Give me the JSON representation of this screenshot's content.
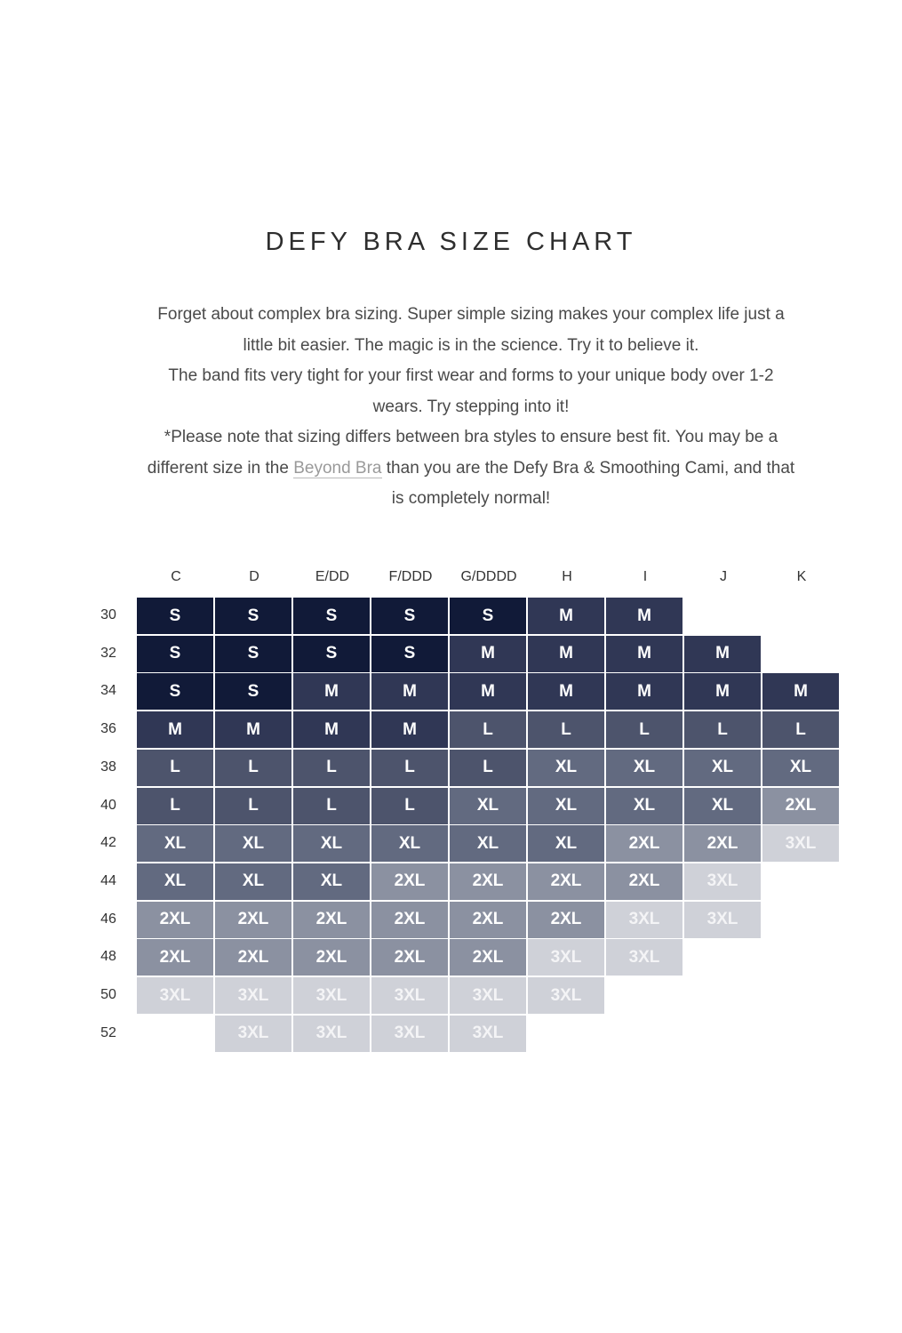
{
  "title": "DEFY BRA SIZE CHART",
  "intro": {
    "line1": "Forget about complex bra sizing. Super simple sizing makes your complex life just a",
    "line2": "little bit easier. The magic is in the science. Try it to believe it.",
    "line3": "The band fits very tight for your first wear and forms to your unique body over 1-2",
    "line4": "wears. Try stepping into it!",
    "line5": "*Please note that sizing differs between bra styles to ensure best fit. You may be a",
    "line6_pre": "different size in the ",
    "line6_link": "Beyond Bra",
    "line6_post": " than you are the Defy Bra & Smoothing Cami, and that",
    "line7": "is completely normal!"
  },
  "size_colors": {
    "S": "#111a38",
    "M": "#303755",
    "L": "#4d546c",
    "XL": "#626a80",
    "2XL": "#8b91a1",
    "3XL": "#cfd1d8"
  },
  "chart_data": {
    "type": "table",
    "columns": [
      "C",
      "D",
      "E/DD",
      "F/DDD",
      "G/DDDD",
      "H",
      "I",
      "J",
      "K"
    ],
    "rows": [
      {
        "band": "30",
        "sizes": [
          "S",
          "S",
          "S",
          "S",
          "S",
          "M",
          "M",
          "",
          ""
        ]
      },
      {
        "band": "32",
        "sizes": [
          "S",
          "S",
          "S",
          "S",
          "M",
          "M",
          "M",
          "M",
          ""
        ]
      },
      {
        "band": "34",
        "sizes": [
          "S",
          "S",
          "M",
          "M",
          "M",
          "M",
          "M",
          "M",
          "M"
        ]
      },
      {
        "band": "36",
        "sizes": [
          "M",
          "M",
          "M",
          "M",
          "L",
          "L",
          "L",
          "L",
          "L"
        ]
      },
      {
        "band": "38",
        "sizes": [
          "L",
          "L",
          "L",
          "L",
          "L",
          "XL",
          "XL",
          "XL",
          "XL"
        ]
      },
      {
        "band": "40",
        "sizes": [
          "L",
          "L",
          "L",
          "L",
          "XL",
          "XL",
          "XL",
          "XL",
          "2XL"
        ]
      },
      {
        "band": "42",
        "sizes": [
          "XL",
          "XL",
          "XL",
          "XL",
          "XL",
          "XL",
          "2XL",
          "2XL",
          "3XL"
        ]
      },
      {
        "band": "44",
        "sizes": [
          "XL",
          "XL",
          "XL",
          "2XL",
          "2XL",
          "2XL",
          "2XL",
          "3XL",
          ""
        ]
      },
      {
        "band": "46",
        "sizes": [
          "2XL",
          "2XL",
          "2XL",
          "2XL",
          "2XL",
          "2XL",
          "3XL",
          "3XL",
          ""
        ]
      },
      {
        "band": "48",
        "sizes": [
          "2XL",
          "2XL",
          "2XL",
          "2XL",
          "2XL",
          "3XL",
          "3XL",
          "",
          ""
        ]
      },
      {
        "band": "50",
        "sizes": [
          "3XL",
          "3XL",
          "3XL",
          "3XL",
          "3XL",
          "3XL",
          "",
          "",
          ""
        ]
      },
      {
        "band": "52",
        "sizes": [
          "",
          "3XL",
          "3XL",
          "3XL",
          "3XL",
          "",
          "",
          "",
          ""
        ]
      }
    ]
  }
}
